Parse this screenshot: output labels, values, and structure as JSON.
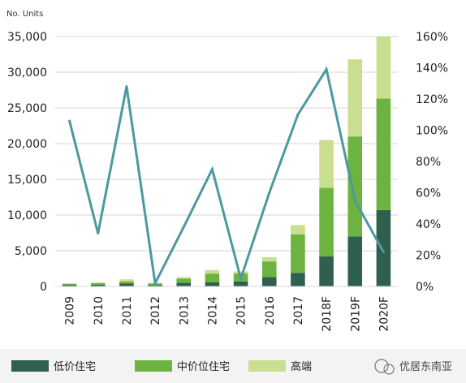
{
  "chart_data": {
    "type": "bar",
    "stacked": true,
    "unit_label": "No. Units",
    "categories": [
      "2009",
      "2010",
      "2011",
      "2012",
      "2013",
      "2014",
      "2015",
      "2016",
      "2017",
      "2018F",
      "2019F",
      "2020F"
    ],
    "series": [
      {
        "name": "低价住宅",
        "color": "#2f5f4f",
        "values": [
          200,
          250,
          400,
          200,
          500,
          600,
          700,
          1300,
          1900,
          4200,
          7000,
          10700
        ]
      },
      {
        "name": "中价位住宅",
        "color": "#6db33f",
        "values": [
          150,
          200,
          300,
          200,
          600,
          1200,
          1100,
          2200,
          5400,
          9600,
          14000,
          15600
        ]
      },
      {
        "name": "高端",
        "color": "#c9de8e",
        "values": [
          100,
          100,
          300,
          100,
          200,
          500,
          300,
          600,
          1300,
          6700,
          10800,
          8700
        ]
      }
    ],
    "line": {
      "color": "#4a9aa0",
      "values": [
        106,
        34,
        128,
        2,
        38,
        75,
        5,
        60,
        110,
        139,
        55,
        22
      ]
    },
    "y_left": {
      "min": 0,
      "max": 35000,
      "ticks": [
        "0",
        "5,000",
        "10,000",
        "15,000",
        "20,000",
        "25,000",
        "30,000",
        "35,000"
      ]
    },
    "y_right": {
      "min": 0,
      "max": 160,
      "ticks": [
        "0%",
        "20%",
        "40%",
        "60%",
        "80%",
        "100%",
        "120%",
        "140%",
        "160%"
      ]
    },
    "grid": "horizontal",
    "legend_position": "bottom-left"
  },
  "watermark": {
    "text": "优居东南亚"
  }
}
